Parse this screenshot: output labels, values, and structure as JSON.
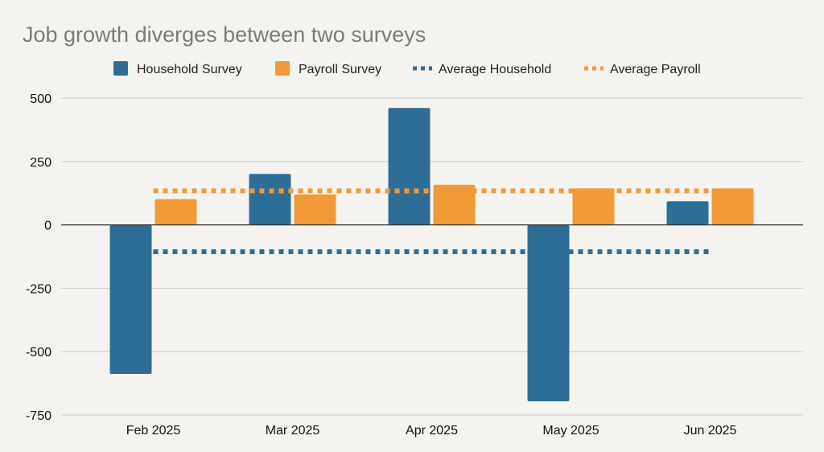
{
  "chart_data": {
    "type": "bar",
    "title": "Job growth diverges between two surveys",
    "xlabel": "",
    "ylabel": "",
    "categories": [
      "Feb 2025",
      "Mar 2025",
      "Apr 2025",
      "May 2025",
      "Jun 2025"
    ],
    "series": [
      {
        "name": "Household Survey",
        "kind": "bar",
        "color": "#2e6e96",
        "values": [
          -588,
          201,
          461,
          -696,
          93
        ]
      },
      {
        "name": "Payroll Survey",
        "kind": "bar",
        "color": "#f29a38",
        "values": [
          102,
          120,
          158,
          144,
          144
        ]
      },
      {
        "name": "Average Household",
        "kind": "line",
        "style": "dotted",
        "color": "#2e6e96",
        "value": -106
      },
      {
        "name": "Average Payroll",
        "kind": "line",
        "style": "dotted",
        "color": "#f29a38",
        "value": 134
      }
    ],
    "ylim": [
      -750,
      500
    ],
    "yticks": [
      500,
      250,
      0,
      -250,
      -500,
      -750
    ],
    "ytick_labels": [
      "500",
      "250",
      "0",
      "-250",
      "-500",
      "-750"
    ],
    "grid": true,
    "legend_position": "top-center"
  }
}
